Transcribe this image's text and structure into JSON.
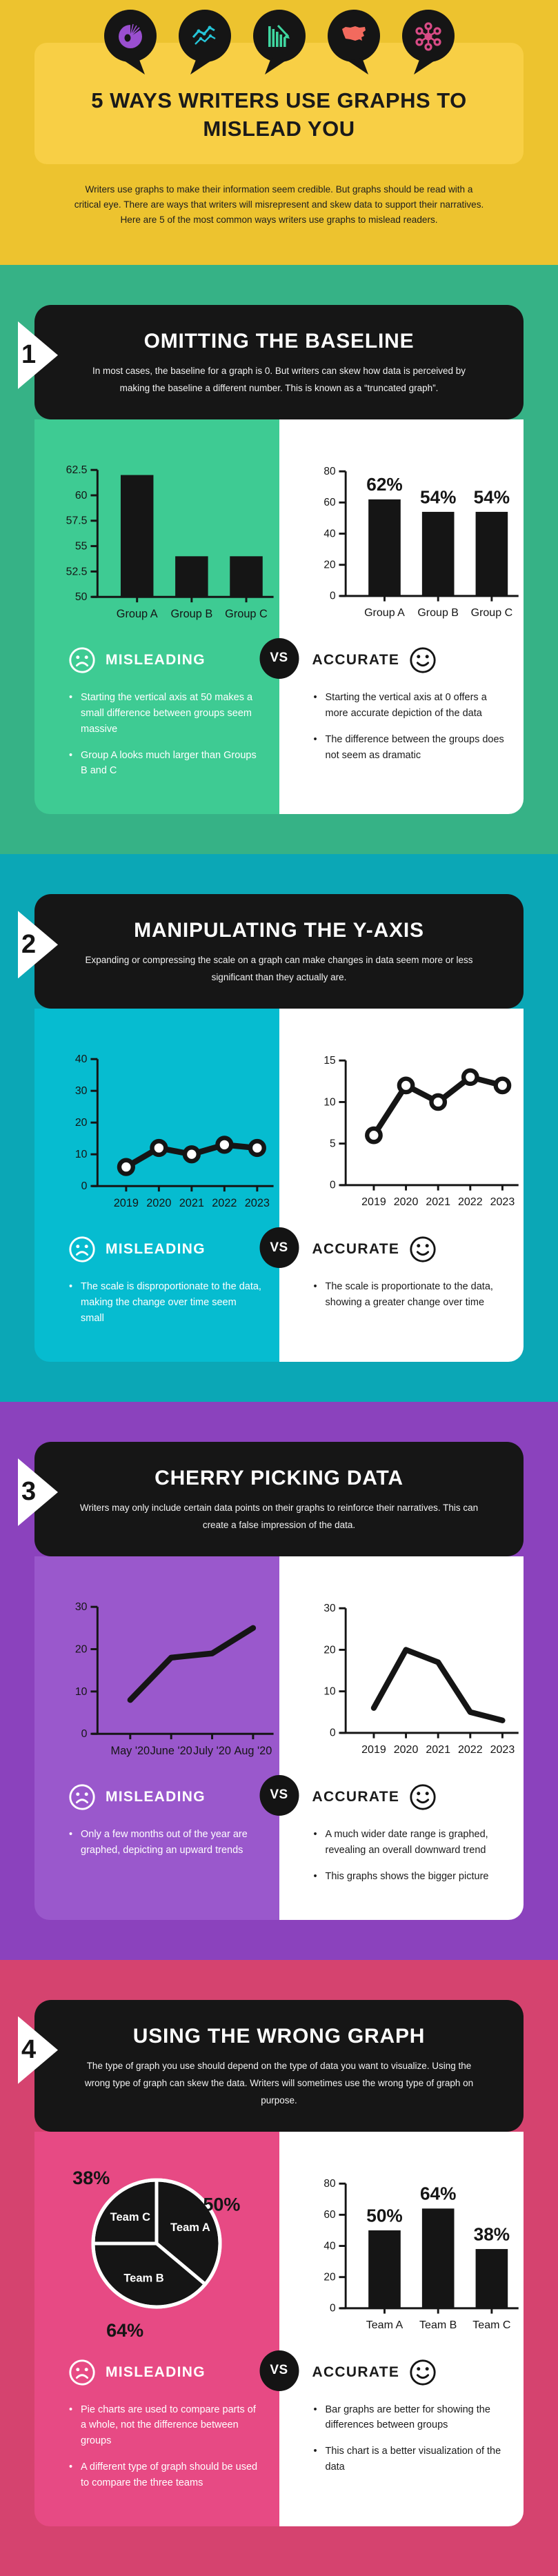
{
  "page": {
    "background_color": "#edc32f"
  },
  "header": {
    "title": "5 WAYS WRITERS USE GRAPHS TO MISLEAD YOU",
    "intro": "Writers use graphs to make their information seem credible. But graphs should be read with a critical eye. There are ways that writers will misrepresent and skew data to support their narratives. Here are 5 of the most common ways writers use graphs to mislead readers.",
    "icons": [
      {
        "name": "pie-chart-icon",
        "color": "#9a4fd0"
      },
      {
        "name": "line-chart-icon",
        "color": "#25c5d8"
      },
      {
        "name": "declining-bar-chart-icon",
        "color": "#3fd6a0"
      },
      {
        "name": "usa-map-icon",
        "color": "#f26a5e"
      },
      {
        "name": "network-icon",
        "color": "#d84b86"
      }
    ]
  },
  "labels": {
    "misleading": "MISLEADING",
    "accurate": "ACCURATE",
    "vs": "VS"
  },
  "sections": [
    {
      "number": "1",
      "title": "OMITTING THE BASELINE",
      "subtitle": "In most cases, the baseline for a graph is 0. But writers can skew how data is perceived by making the baseline a different number. This is known as a “truncated graph”.",
      "background": "#36b286",
      "panel": "#3ecb93",
      "misleading_points": [
        "Starting the vertical axis at 50 makes a small difference between groups seem massive",
        "Group A looks much larger than Groups B and C"
      ],
      "accurate_points": [
        "Starting the vertical axis at 0 offers a more accurate depiction of the data",
        "The difference between the groups does not seem as dramatic"
      ]
    },
    {
      "number": "2",
      "title": "MANIPULATING THE Y-AXIS",
      "subtitle": "Expanding or compressing the scale on a graph can make changes in data seem more or less significant than they actually are.",
      "background": "#0ba7b6",
      "panel": "#06bcd0",
      "misleading_points": [
        "The scale is disproportionate to the data, making the change over time seem small"
      ],
      "accurate_points": [
        "The scale is proportionate to the data, showing a greater change over time"
      ]
    },
    {
      "number": "3",
      "title": "CHERRY PICKING DATA",
      "subtitle": "Writers may only include certain data points on their graphs to reinforce their narratives. This can create a false impression of the data.",
      "background": "#8b42bd",
      "panel": "#9a58cc",
      "misleading_points": [
        "Only a few months out of the year are graphed, depicting an upward trends"
      ],
      "accurate_points": [
        "A much wider date range is graphed, revealing an overall downward trend",
        "This graphs shows the bigger picture"
      ]
    },
    {
      "number": "4",
      "title": "USING THE WRONG GRAPH",
      "subtitle": "The type of graph you use should depend on the type of data you want to visualize. Using the wrong type of graph can skew the data. Writers will sometimes use the wrong type of graph on purpose.",
      "background": "#d5436f",
      "panel": "#e74a84",
      "misleading_points": [
        "Pie charts are used to compare parts of a whole, not the difference between groups",
        "A different type of graph should be used to compare the three teams"
      ],
      "accurate_points": [
        "Bar graphs are better for showing the differences between groups",
        "This chart is a better visualization of the data"
      ]
    }
  ],
  "chart_data": [
    {
      "id": "s1-misleading",
      "type": "bar",
      "title": "Truncated baseline bar chart",
      "categories": [
        "Group A",
        "Group B",
        "Group C"
      ],
      "values": [
        62,
        54,
        54
      ],
      "ylim": [
        50,
        62.5
      ],
      "yticks": [
        50,
        52.5,
        55,
        57.5,
        60,
        62.5
      ],
      "bar_labels": null
    },
    {
      "id": "s1-accurate",
      "type": "bar",
      "title": "Zero-baseline bar chart",
      "categories": [
        "Group A",
        "Group B",
        "Group C"
      ],
      "values": [
        62,
        54,
        54
      ],
      "ylim": [
        0,
        80
      ],
      "yticks": [
        0,
        20,
        40,
        60,
        80
      ],
      "bar_labels": [
        "62%",
        "54%",
        "54%"
      ]
    },
    {
      "id": "s2-misleading",
      "type": "line",
      "title": "Over-expanded y-axis line chart",
      "x": [
        "2019",
        "2020",
        "2021",
        "2022",
        "2023"
      ],
      "values": [
        6,
        12,
        10,
        13,
        12
      ],
      "ylim": [
        0,
        40
      ],
      "yticks": [
        0,
        10,
        20,
        30,
        40
      ],
      "markers": true
    },
    {
      "id": "s2-accurate",
      "type": "line",
      "title": "Proportionate y-axis line chart",
      "x": [
        "2019",
        "2020",
        "2021",
        "2022",
        "2023"
      ],
      "values": [
        6,
        12,
        10,
        13,
        12
      ],
      "ylim": [
        0,
        15
      ],
      "yticks": [
        0,
        5,
        10,
        15
      ],
      "markers": true
    },
    {
      "id": "s3-misleading",
      "type": "line",
      "title": "Cherry-picked months line chart",
      "x": [
        "May '20",
        "June '20",
        "July '20",
        "Aug '20"
      ],
      "values": [
        8,
        18,
        19,
        25
      ],
      "ylim": [
        0,
        30
      ],
      "yticks": [
        0,
        10,
        20,
        30
      ],
      "markers": false
    },
    {
      "id": "s3-accurate",
      "type": "line",
      "title": "Full date range line chart",
      "x": [
        "2019",
        "2020",
        "2021",
        "2022",
        "2023"
      ],
      "values": [
        6,
        20,
        17,
        5,
        3
      ],
      "ylim": [
        0,
        30
      ],
      "yticks": [
        0,
        10,
        20,
        30
      ],
      "markers": false
    },
    {
      "id": "s4-misleading",
      "type": "pie",
      "title": "Wrong graph type pie chart",
      "slices": [
        {
          "label": "Team A",
          "value_label": "50%",
          "sweep": 130
        },
        {
          "label": "Team B",
          "value_label": "64%",
          "sweep": 140
        },
        {
          "label": "Team C",
          "value_label": "38%",
          "sweep": 90
        }
      ]
    },
    {
      "id": "s4-accurate",
      "type": "bar",
      "title": "Comparison bar chart",
      "categories": [
        "Team A",
        "Team B",
        "Team C"
      ],
      "values": [
        50,
        64,
        38
      ],
      "ylim": [
        0,
        80
      ],
      "yticks": [
        0,
        20,
        40,
        60,
        80
      ],
      "bar_labels": [
        "50%",
        "64%",
        "38%"
      ]
    }
  ]
}
